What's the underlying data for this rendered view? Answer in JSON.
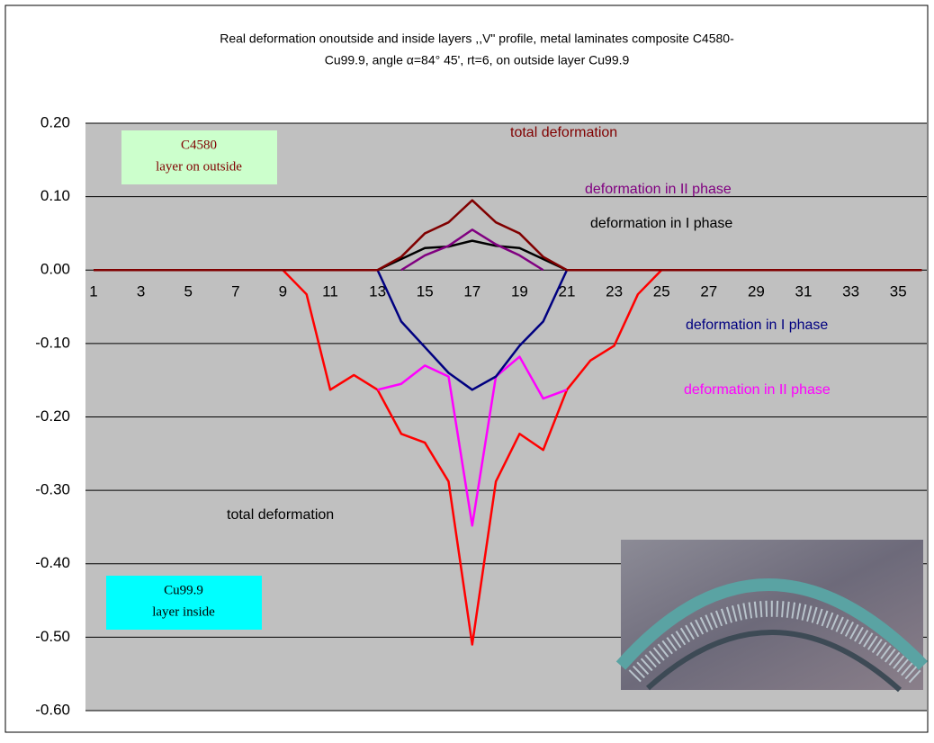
{
  "chart_data": {
    "type": "line",
    "title": [
      "Real deformation onoutside and inside layers  ,,V\" profile, metal laminates composite C4580-",
      "Cu99.9, angle α=84° 45',  rt=6, on outside layer Cu99.9"
    ],
    "categories": [
      1,
      null,
      3,
      null,
      5,
      null,
      7,
      null,
      9,
      null,
      11,
      null,
      13,
      null,
      15,
      null,
      17,
      null,
      19,
      null,
      21,
      null,
      23,
      null,
      25,
      null,
      27,
      null,
      29,
      null,
      31,
      null,
      33,
      null,
      35,
      null
    ],
    "ylim": [
      -0.6,
      0.2
    ],
    "yticks": [
      {
        "value": 0.2,
        "label": "0.20"
      },
      {
        "value": 0.1,
        "label": "0.10"
      },
      {
        "value": 0,
        "label": "0.00"
      },
      {
        "value": -0.1,
        "label": "-0.10"
      },
      {
        "value": -0.2,
        "label": "-0.20"
      },
      {
        "value": -0.3,
        "label": "-0.30"
      },
      {
        "value": -0.4,
        "label": "-0.40"
      },
      {
        "value": -0.5,
        "label": "-0.50"
      },
      {
        "value": -0.6,
        "label": "-0.60"
      }
    ],
    "grid": true,
    "series": [
      {
        "name": "total deformation",
        "color": "#ff0000",
        "label_color": "#000000",
        "values": [
          0,
          0,
          0,
          0,
          0,
          0,
          0,
          0,
          0,
          -0.033,
          -0.163,
          -0.143,
          -0.163,
          -0.223,
          -0.235,
          -0.288,
          -0.51,
          -0.288,
          -0.223,
          -0.245,
          -0.163,
          -0.123,
          -0.103,
          -0.033,
          0,
          0,
          0,
          0,
          0,
          0,
          0,
          0,
          0,
          0,
          0,
          0
        ]
      },
      {
        "name": "deformation in  II phase",
        "color": "#ff00ff",
        "label_color": "#ff00ff",
        "values": [
          null,
          null,
          null,
          null,
          null,
          null,
          null,
          null,
          null,
          null,
          null,
          null,
          -0.163,
          -0.155,
          -0.13,
          -0.145,
          -0.348,
          -0.145,
          -0.118,
          -0.175,
          -0.163,
          null,
          null,
          null,
          null,
          null,
          null,
          null,
          null,
          null,
          null,
          null,
          null,
          null,
          null,
          null
        ]
      },
      {
        "name": "deformation in  I phase",
        "color": "#000080",
        "label_color": "#000080",
        "values": [
          null,
          null,
          null,
          null,
          null,
          null,
          null,
          null,
          null,
          null,
          null,
          null,
          0,
          -0.07,
          -0.105,
          -0.14,
          -0.163,
          -0.145,
          -0.103,
          -0.07,
          0,
          null,
          null,
          null,
          null,
          null,
          null,
          null,
          null,
          null,
          null,
          null,
          null,
          null,
          null,
          null
        ]
      },
      {
        "name": "deformation in  I phase",
        "color": "#000000",
        "label_color": "#000000",
        "values": [
          null,
          null,
          null,
          null,
          null,
          null,
          null,
          null,
          null,
          null,
          null,
          null,
          0,
          0.015,
          0.03,
          0.032,
          0.04,
          0.033,
          0.03,
          0.015,
          0,
          null,
          null,
          null,
          null,
          null,
          null,
          null,
          null,
          null,
          null,
          null,
          null,
          null,
          null,
          null
        ]
      },
      {
        "name": "deformation in  II phase",
        "color": "#800080",
        "label_color": "#800080",
        "values": [
          null,
          null,
          null,
          null,
          null,
          null,
          null,
          null,
          null,
          null,
          null,
          null,
          null,
          0,
          0.02,
          0.033,
          0.055,
          0.035,
          0.02,
          0,
          null,
          null,
          null,
          null,
          null,
          null,
          null,
          null,
          null,
          null,
          null,
          null,
          null,
          null,
          null,
          null
        ]
      },
      {
        "name": "total deformation",
        "color": "#800000",
        "label_color": "#800000",
        "values": [
          0,
          0,
          0,
          0,
          0,
          0,
          0,
          0,
          0,
          0,
          0,
          0,
          0,
          0.018,
          0.05,
          0.065,
          0.095,
          0.065,
          0.05,
          0.018,
          0,
          0,
          0,
          0,
          0,
          0,
          0,
          0,
          0,
          0,
          0,
          0,
          0,
          0,
          0,
          0
        ]
      }
    ],
    "boxes": [
      {
        "lines": [
          "C4580",
          "layer on outside"
        ],
        "color": "#ccffcc",
        "text_color": "#800000"
      },
      {
        "lines": [
          "Cu99.9",
          "layer inside"
        ],
        "color": "#00ffff",
        "text_color": "#000000"
      }
    ]
  }
}
